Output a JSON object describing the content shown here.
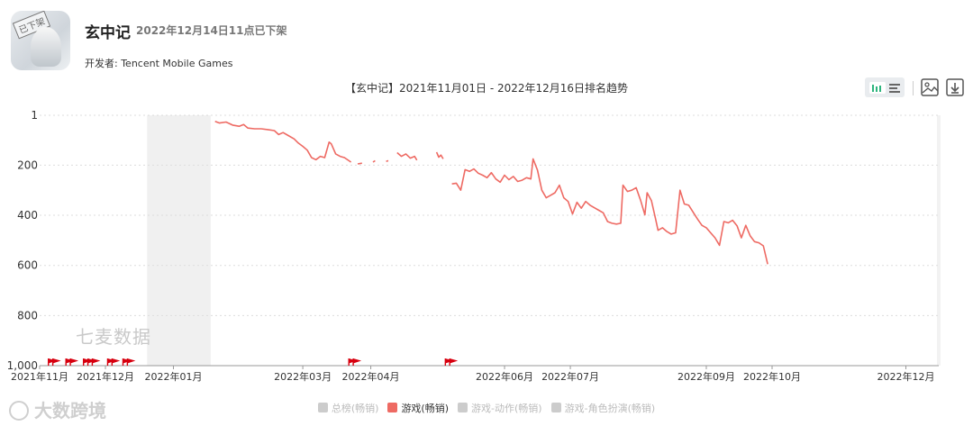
{
  "app": {
    "name": "玄中记",
    "status": "2022年12月14日11点已下架",
    "icon_stamp": "已下架",
    "developer": "开发者: Tencent Mobile Games"
  },
  "toolbar": {
    "icons": [
      "bar-chart-icon",
      "list-icon",
      "image-icon",
      "download-icon"
    ]
  },
  "watermarks": {
    "center_text": "七麦数据",
    "logo_text": "大数跨境"
  },
  "colors": {
    "series": "#ee6a63",
    "flag": "#d7000f",
    "shade": "#f0f0f0",
    "legend_inactive": "#cccccc",
    "toggle_active": "#2db57e"
  },
  "legend": [
    {
      "label": "总榜(畅销)",
      "active": false
    },
    {
      "label": "游戏(畅销)",
      "active": true
    },
    {
      "label": "游戏-动作(畅销)",
      "active": false
    },
    {
      "label": "游戏-角色扮演(畅销)",
      "active": false
    }
  ],
  "chart_data": {
    "type": "line",
    "title": "【玄中记】2021年11月01日 - 2022年12月16日排名趋势",
    "xlabel": "",
    "ylabel": "",
    "y_inverted": true,
    "ylim": [
      1,
      1000
    ],
    "y_ticks": [
      "1",
      "200",
      "400",
      "600",
      "800",
      "1,000"
    ],
    "x_ticks": [
      "2021年11月",
      "2021年12月",
      "2022年01月",
      "2022年03月",
      "2022年04月",
      "2022年06月",
      "2022年07月",
      "2022年09月",
      "2022年10月",
      "2022年12月"
    ],
    "shaded_range": [
      "2021-12-20",
      "2022-01-18"
    ],
    "series": [
      {
        "name": "游戏(畅销)",
        "segments": [
          [
            [
              "2022-01-20",
              25
            ],
            [
              "2022-01-22",
              32
            ],
            [
              "2022-01-25",
              28
            ],
            [
              "2022-01-28",
              40
            ],
            [
              "2022-01-31",
              45
            ],
            [
              "2022-02-02",
              38
            ],
            [
              "2022-02-04",
              52
            ],
            [
              "2022-02-07",
              55
            ],
            [
              "2022-02-10",
              55
            ],
            [
              "2022-02-13",
              58
            ],
            [
              "2022-02-16",
              62
            ],
            [
              "2022-02-18",
              78
            ],
            [
              "2022-02-20",
              70
            ],
            [
              "2022-02-22",
              80
            ],
            [
              "2022-02-25",
              95
            ],
            [
              "2022-02-27",
              112
            ],
            [
              "2022-03-01",
              125
            ],
            [
              "2022-03-03",
              140
            ],
            [
              "2022-03-05",
              170
            ],
            [
              "2022-03-07",
              178
            ],
            [
              "2022-03-09",
              165
            ],
            [
              "2022-03-11",
              170
            ],
            [
              "2022-03-13",
              108
            ],
            [
              "2022-03-14",
              115
            ],
            [
              "2022-03-16",
              155
            ],
            [
              "2022-03-18",
              165
            ],
            [
              "2022-03-20",
              170
            ],
            [
              "2022-03-23",
              188
            ]
          ],
          [
            [
              "2022-03-26",
              195
            ],
            [
              "2022-03-28",
              192
            ]
          ],
          [
            [
              "2022-04-02",
              188
            ],
            [
              "2022-04-03",
              182
            ]
          ],
          [
            [
              "2022-04-08",
              185
            ],
            [
              "2022-04-09",
              182
            ]
          ],
          [
            [
              "2022-04-13",
              150
            ],
            [
              "2022-04-15",
              165
            ],
            [
              "2022-04-17",
              155
            ],
            [
              "2022-04-19",
              172
            ],
            [
              "2022-04-21",
              165
            ],
            [
              "2022-04-22",
              180
            ]
          ],
          [
            [
              "2022-05-01",
              148
            ],
            [
              "2022-05-02",
              168
            ],
            [
              "2022-05-03",
              160
            ],
            [
              "2022-05-04",
              175
            ]
          ],
          [
            [
              "2022-05-08",
              275
            ],
            [
              "2022-05-10",
              272
            ],
            [
              "2022-05-12",
              300
            ],
            [
              "2022-05-14",
              218
            ],
            [
              "2022-05-16",
              225
            ],
            [
              "2022-05-18",
              215
            ],
            [
              "2022-05-20",
              232
            ],
            [
              "2022-05-22",
              240
            ],
            [
              "2022-05-24",
              250
            ],
            [
              "2022-05-26",
              230
            ],
            [
              "2022-05-28",
              255
            ],
            [
              "2022-05-30",
              268
            ],
            [
              "2022-06-01",
              240
            ],
            [
              "2022-06-03",
              258
            ],
            [
              "2022-06-05",
              245
            ],
            [
              "2022-06-07",
              265
            ],
            [
              "2022-06-09",
              260
            ],
            [
              "2022-06-11",
              250
            ],
            [
              "2022-06-13",
              255
            ],
            [
              "2022-06-14",
              175
            ],
            [
              "2022-06-16",
              220
            ],
            [
              "2022-06-18",
              300
            ],
            [
              "2022-06-20",
              330
            ],
            [
              "2022-06-22",
              320
            ],
            [
              "2022-06-24",
              310
            ],
            [
              "2022-06-26",
              280
            ],
            [
              "2022-06-28",
              330
            ],
            [
              "2022-06-30",
              345
            ],
            [
              "2022-07-02",
              395
            ],
            [
              "2022-07-04",
              348
            ],
            [
              "2022-07-06",
              372
            ],
            [
              "2022-07-08",
              345
            ],
            [
              "2022-07-10",
              360
            ],
            [
              "2022-07-12",
              370
            ],
            [
              "2022-07-14",
              380
            ],
            [
              "2022-07-16",
              390
            ],
            [
              "2022-07-18",
              425
            ],
            [
              "2022-07-20",
              432
            ],
            [
              "2022-07-22",
              435
            ],
            [
              "2022-07-24",
              432
            ],
            [
              "2022-07-25",
              280
            ],
            [
              "2022-07-27",
              305
            ],
            [
              "2022-07-29",
              300
            ],
            [
              "2022-07-31",
              290
            ],
            [
              "2022-08-02",
              340
            ],
            [
              "2022-08-04",
              398
            ],
            [
              "2022-08-05",
              310
            ],
            [
              "2022-08-07",
              342
            ],
            [
              "2022-08-09",
              420
            ],
            [
              "2022-08-10",
              460
            ],
            [
              "2022-08-12",
              450
            ],
            [
              "2022-08-14",
              465
            ],
            [
              "2022-08-16",
              475
            ],
            [
              "2022-08-18",
              470
            ],
            [
              "2022-08-20",
              300
            ],
            [
              "2022-08-22",
              355
            ],
            [
              "2022-08-24",
              360
            ],
            [
              "2022-08-26",
              388
            ],
            [
              "2022-08-28",
              415
            ],
            [
              "2022-08-30",
              440
            ],
            [
              "2022-09-01",
              450
            ],
            [
              "2022-09-03",
              470
            ],
            [
              "2022-09-05",
              490
            ],
            [
              "2022-09-07",
              520
            ],
            [
              "2022-09-09",
              425
            ],
            [
              "2022-09-11",
              430
            ],
            [
              "2022-09-13",
              420
            ],
            [
              "2022-09-15",
              442
            ],
            [
              "2022-09-17",
              490
            ],
            [
              "2022-09-19",
              440
            ],
            [
              "2022-09-21",
              482
            ],
            [
              "2022-09-23",
              505
            ],
            [
              "2022-09-25",
              510
            ],
            [
              "2022-09-27",
              522
            ],
            [
              "2022-09-29",
              595
            ]
          ]
        ]
      }
    ],
    "event_flags": [
      "2021-11-05",
      "2021-11-07",
      "2021-11-13",
      "2021-11-15",
      "2021-11-21",
      "2021-11-23",
      "2021-11-25",
      "2021-12-02",
      "2021-12-04",
      "2021-12-09",
      "2021-12-11",
      "2022-03-22",
      "2022-03-24",
      "2022-05-05",
      "2022-05-07"
    ]
  }
}
